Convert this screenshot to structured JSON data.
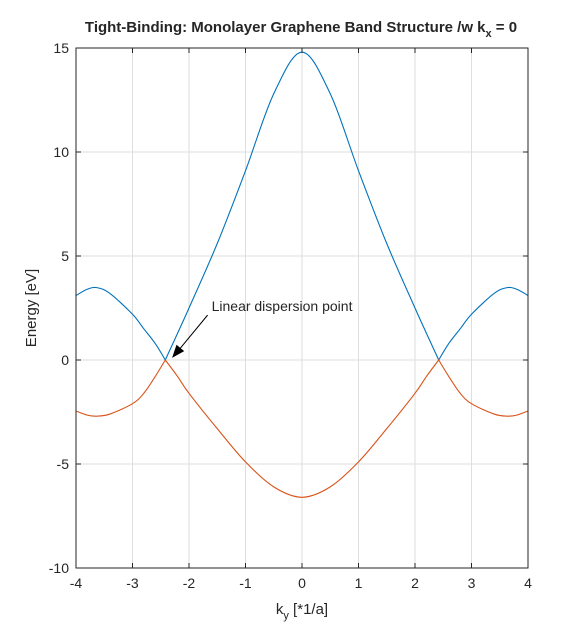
{
  "chart_data": {
    "type": "line",
    "title": {
      "main": "Tight-Binding: Monolayer Graphene Band Structure /w k",
      "sub": "x",
      "tail": " = 0"
    },
    "xlabel": {
      "main": "k",
      "sub": "y",
      "tail": " [*1/a]"
    },
    "ylabel": "Energy [eV]",
    "xlim": [
      -4,
      4
    ],
    "ylim": [
      -10,
      15
    ],
    "xticks": [
      -4,
      -3,
      -2,
      -1,
      0,
      1,
      2,
      3,
      4
    ],
    "xticklabels": [
      "-4",
      "-3",
      "-2",
      "-1",
      "0",
      "1",
      "2",
      "3",
      "4"
    ],
    "yticks": [
      -10,
      -5,
      0,
      5,
      10,
      15
    ],
    "yticklabels": [
      "-10",
      "-5",
      "0",
      "5",
      "10",
      "15"
    ],
    "grid": true,
    "series": [
      {
        "color": "#0072bd",
        "points": [
          [
            -4.0,
            3.1
          ],
          [
            -3.8,
            3.4
          ],
          [
            -3.63,
            3.48
          ],
          [
            -3.4,
            3.2
          ],
          [
            -3.0,
            2.2
          ],
          [
            -2.8,
            1.5
          ],
          [
            -2.6,
            0.8
          ],
          [
            -2.42,
            0.0
          ],
          [
            -2.2,
            1.3
          ],
          [
            -2.0,
            2.5
          ],
          [
            -1.5,
            5.6
          ],
          [
            -1.0,
            9.1
          ],
          [
            -0.5,
            12.8
          ],
          [
            0.0,
            14.8
          ],
          [
            0.5,
            12.8
          ],
          [
            1.0,
            9.1
          ],
          [
            1.5,
            5.6
          ],
          [
            2.0,
            2.5
          ],
          [
            2.2,
            1.3
          ],
          [
            2.42,
            0.0
          ],
          [
            2.6,
            0.8
          ],
          [
            2.8,
            1.5
          ],
          [
            3.0,
            2.2
          ],
          [
            3.4,
            3.2
          ],
          [
            3.63,
            3.48
          ],
          [
            3.8,
            3.4
          ],
          [
            4.0,
            3.1
          ]
        ]
      },
      {
        "color": "#d95319",
        "points": [
          [
            -4.0,
            -2.45
          ],
          [
            -3.8,
            -2.65
          ],
          [
            -3.63,
            -2.7
          ],
          [
            -3.4,
            -2.6
          ],
          [
            -3.0,
            -2.1
          ],
          [
            -2.8,
            -1.6
          ],
          [
            -2.6,
            -0.8
          ],
          [
            -2.42,
            0.0
          ],
          [
            -2.2,
            -0.8
          ],
          [
            -2.0,
            -1.6
          ],
          [
            -1.5,
            -3.3
          ],
          [
            -1.0,
            -4.9
          ],
          [
            -0.5,
            -6.1
          ],
          [
            0.0,
            -6.6
          ],
          [
            0.5,
            -6.1
          ],
          [
            1.0,
            -4.9
          ],
          [
            1.5,
            -3.3
          ],
          [
            2.0,
            -1.6
          ],
          [
            2.2,
            -0.8
          ],
          [
            2.42,
            0.0
          ],
          [
            2.6,
            -0.8
          ],
          [
            2.8,
            -1.6
          ],
          [
            3.0,
            -2.1
          ],
          [
            3.4,
            -2.6
          ],
          [
            3.63,
            -2.7
          ],
          [
            3.8,
            -2.65
          ],
          [
            4.0,
            -2.45
          ]
        ]
      }
    ],
    "annotations": [
      {
        "text": "Linear dispersion point",
        "text_at": [
          -1.6,
          2.35
        ],
        "arrow_to": [
          -2.3,
          0.1
        ]
      }
    ]
  }
}
